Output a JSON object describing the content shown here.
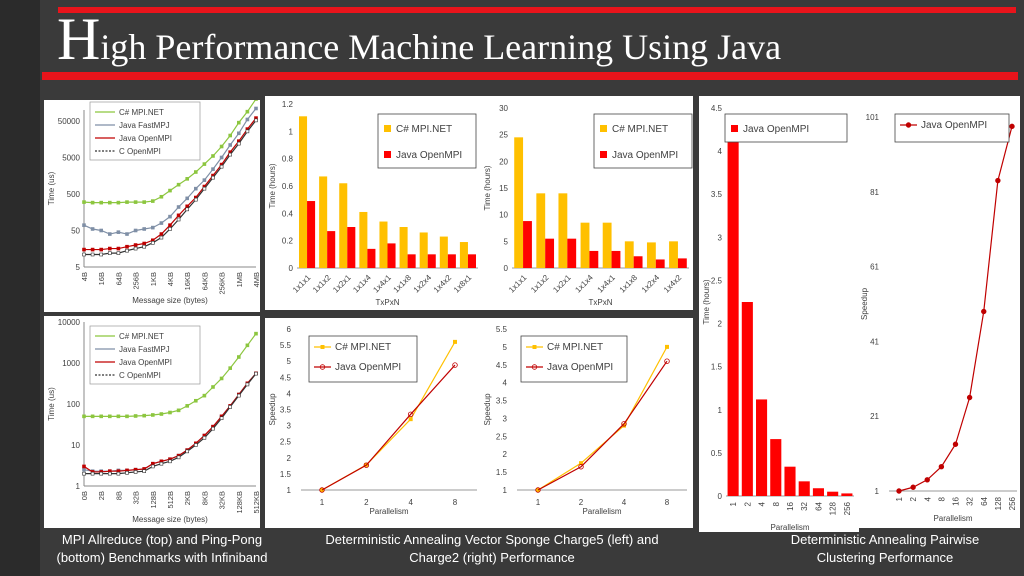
{
  "header": {
    "title_initial": "H",
    "title_rest": "igh Performance Machine Learning Using Java"
  },
  "captions": {
    "left": "MPI Allreduce (top) and Ping-Pong (bottom) Benchmarks with Infiniband",
    "middle": "Deterministic Annealing Vector Sponge Charge5 (left) and Charge2 (right) Performance",
    "right": "Deterministic Annealing Pairwise Clustering Performance"
  },
  "colors": {
    "csharp": "#8cc63f",
    "javafast": "#7f8fa6",
    "javaopen": "#c00000",
    "copen": "#333333",
    "yellow": "#ffc000",
    "red": "#ff0000",
    "line_red": "#c00000",
    "line_yellow": "#ffc000"
  },
  "chart_data": [
    {
      "id": "allreduce",
      "type": "line",
      "x_ticks": [
        "4B",
        "16B",
        "64B",
        "256B",
        "1KB",
        "4KB",
        "16KB",
        "64KB",
        "256KB",
        "1MB",
        "4MB"
      ],
      "x_points": 21,
      "xlabel": "Message size (bytes)",
      "ylabel": "Time (us)",
      "yscale": "log",
      "ylim": [
        5,
        100000
      ],
      "y_ticks": [
        5,
        50,
        500,
        5000,
        50000
      ],
      "legend": "top-left",
      "series": [
        {
          "name": "C# MPI.NET",
          "values": [
            300,
            290,
            290,
            290,
            290,
            300,
            300,
            300,
            320,
            420,
            620,
            900,
            1300,
            2000,
            3300,
            5500,
            10000,
            20000,
            45000,
            90000,
            200000
          ]
        },
        {
          "name": "Java FastMPJ",
          "values": [
            70,
            55,
            50,
            40,
            45,
            40,
            50,
            55,
            60,
            80,
            120,
            220,
            380,
            700,
            1200,
            2400,
            5000,
            11000,
            23000,
            55000,
            110000
          ]
        },
        {
          "name": "Java OpenMPI",
          "values": [
            15,
            15,
            15,
            16,
            16,
            18,
            20,
            22,
            27,
            40,
            70,
            130,
            230,
            400,
            800,
            1600,
            3200,
            7000,
            14000,
            30000,
            60000
          ]
        },
        {
          "name": "C OpenMPI",
          "values": [
            11,
            11,
            11,
            12,
            12,
            14,
            16,
            18,
            23,
            32,
            55,
            100,
            190,
            350,
            700,
            1400,
            2800,
            6000,
            12000,
            26000,
            52000
          ]
        }
      ]
    },
    {
      "id": "pingpong",
      "type": "line",
      "x_ticks": [
        "0B",
        "2B",
        "8B",
        "32B",
        "128B",
        "512B",
        "2KB",
        "8KB",
        "32KB",
        "128KB",
        "512KB"
      ],
      "x_points": 21,
      "xlabel": "Message size (bytes)",
      "ylabel": "Time (us)",
      "yscale": "log",
      "ylim": [
        1,
        10000
      ],
      "y_ticks": [
        1,
        10,
        100,
        1000,
        10000
      ],
      "legend": "top-left",
      "series": [
        {
          "name": "C# MPI.NET",
          "values": [
            50,
            50,
            50,
            50,
            50,
            50,
            51,
            52,
            54,
            57,
            62,
            70,
            90,
            120,
            160,
            260,
            420,
            750,
            1400,
            2700,
            5200
          ]
        },
        {
          "name": "Java FastMPJ",
          "values": [
            2.5,
            2.3,
            2.3,
            2.3,
            2.4,
            2.4,
            2.5,
            2.6,
            3.5,
            4.0,
            4.5,
            5.5,
            7.5,
            11,
            17,
            28,
            50,
            90,
            170,
            320,
            560
          ]
        },
        {
          "name": "Java OpenMPI",
          "values": [
            3,
            2.2,
            2.2,
            2.3,
            2.3,
            2.4,
            2.5,
            2.6,
            3.5,
            4.0,
            4.5,
            5.5,
            7.5,
            11,
            17,
            28,
            50,
            90,
            170,
            320,
            560
          ]
        },
        {
          "name": "C OpenMPI",
          "values": [
            2,
            2,
            2,
            2,
            2,
            2.1,
            2.2,
            2.3,
            3.0,
            3.5,
            4,
            5,
            7,
            10,
            15,
            25,
            45,
            85,
            160,
            300,
            550
          ]
        }
      ]
    },
    {
      "id": "charge5-time",
      "type": "bar",
      "categories": [
        "1x1x1",
        "1x1x2",
        "1x2x1",
        "1x1x4",
        "1x4x1",
        "1x1x8",
        "1x2x4",
        "1x4x2",
        "1x8x1"
      ],
      "xlabel": "TxPxN",
      "ylabel": "Time (hours)",
      "ylim": [
        0,
        1.2
      ],
      "y_ticks": [
        0,
        0.2,
        0.4,
        0.6,
        0.8,
        1,
        1.2
      ],
      "legend": "top-right",
      "series": [
        {
          "name": "C# MPI.NET",
          "values": [
            1.11,
            0.67,
            0.62,
            0.41,
            0.34,
            0.3,
            0.26,
            0.23,
            0.19
          ]
        },
        {
          "name": "Java OpenMPI",
          "values": [
            0.49,
            0.27,
            0.3,
            0.14,
            0.18,
            0.1,
            0.1,
            0.1,
            0.1
          ]
        }
      ]
    },
    {
      "id": "charge2-time",
      "type": "bar",
      "categories": [
        "1x1x1",
        "1x1x2",
        "1x2x1",
        "1x1x4",
        "1x4x1",
        "1x1x8",
        "1x2x4",
        "1x4x2"
      ],
      "xlabel": "TxPxN",
      "ylabel": "Time (hours)",
      "ylim": [
        0,
        30
      ],
      "y_ticks": [
        0,
        5,
        10,
        15,
        20,
        25,
        30
      ],
      "legend": "top-right",
      "series": [
        {
          "name": "C# MPI.NET",
          "values": [
            24.5,
            14,
            14,
            8.5,
            8.5,
            5,
            4.8,
            5
          ]
        },
        {
          "name": "Java OpenMPI",
          "values": [
            8.8,
            5.5,
            5.5,
            3.2,
            3.2,
            2.2,
            1.6,
            1.8
          ]
        }
      ]
    },
    {
      "id": "charge5-speedup",
      "type": "line",
      "categories": [
        "1",
        "2",
        "4",
        "8"
      ],
      "xlabel": "Parallelism",
      "ylabel": "Speedup",
      "ylim": [
        1,
        6
      ],
      "y_ticks": [
        1,
        1.5,
        2,
        2.5,
        3,
        3.5,
        4,
        4.5,
        5,
        5.5,
        6
      ],
      "legend": "top-left",
      "series": [
        {
          "name": "C# MPI.NET",
          "values": [
            1,
            1.78,
            3.2,
            5.6
          ]
        },
        {
          "name": "Java OpenMPI",
          "values": [
            1,
            1.77,
            3.35,
            4.88
          ]
        }
      ]
    },
    {
      "id": "charge2-speedup",
      "type": "line",
      "categories": [
        "1",
        "2",
        "4",
        "8"
      ],
      "xlabel": "Parallelism",
      "ylabel": "Speedup",
      "ylim": [
        1,
        5.5
      ],
      "y_ticks": [
        1,
        1.5,
        2,
        2.5,
        3,
        3.5,
        4,
        4.5,
        5,
        5.5
      ],
      "legend": "top-left",
      "series": [
        {
          "name": "C# MPI.NET",
          "values": [
            1,
            1.75,
            2.8,
            5
          ]
        },
        {
          "name": "Java OpenMPI",
          "values": [
            1,
            1.65,
            2.85,
            4.6
          ]
        }
      ]
    },
    {
      "id": "pairwise-time",
      "type": "bar",
      "categories": [
        "1",
        "2",
        "4",
        "8",
        "16",
        "32",
        "64",
        "128",
        "256"
      ],
      "xlabel": "Parallelism",
      "ylabel": "Time (hours)",
      "ylim": [
        0,
        4.5
      ],
      "y_ticks": [
        0,
        0.5,
        1,
        1.5,
        2,
        2.5,
        3,
        3.5,
        4,
        4.5
      ],
      "legend": "top-right",
      "series": [
        {
          "name": "Java OpenMPI",
          "values": [
            4.43,
            2.25,
            1.12,
            0.66,
            0.34,
            0.17,
            0.09,
            0.05,
            0.03
          ]
        }
      ]
    },
    {
      "id": "pairwise-speedup",
      "type": "line",
      "categories": [
        "1",
        "2",
        "4",
        "8",
        "16",
        "32",
        "64",
        "128",
        "256"
      ],
      "xlabel": "Parallelism",
      "ylabel": "Speedup",
      "ylim": [
        1,
        101
      ],
      "y_ticks": [
        1,
        21,
        41,
        61,
        81,
        101
      ],
      "legend": "top-right",
      "series": [
        {
          "name": "Java OpenMPI",
          "values": [
            1,
            2,
            4,
            7.5,
            13.5,
            26,
            49,
            84,
            98.5
          ]
        }
      ]
    }
  ]
}
